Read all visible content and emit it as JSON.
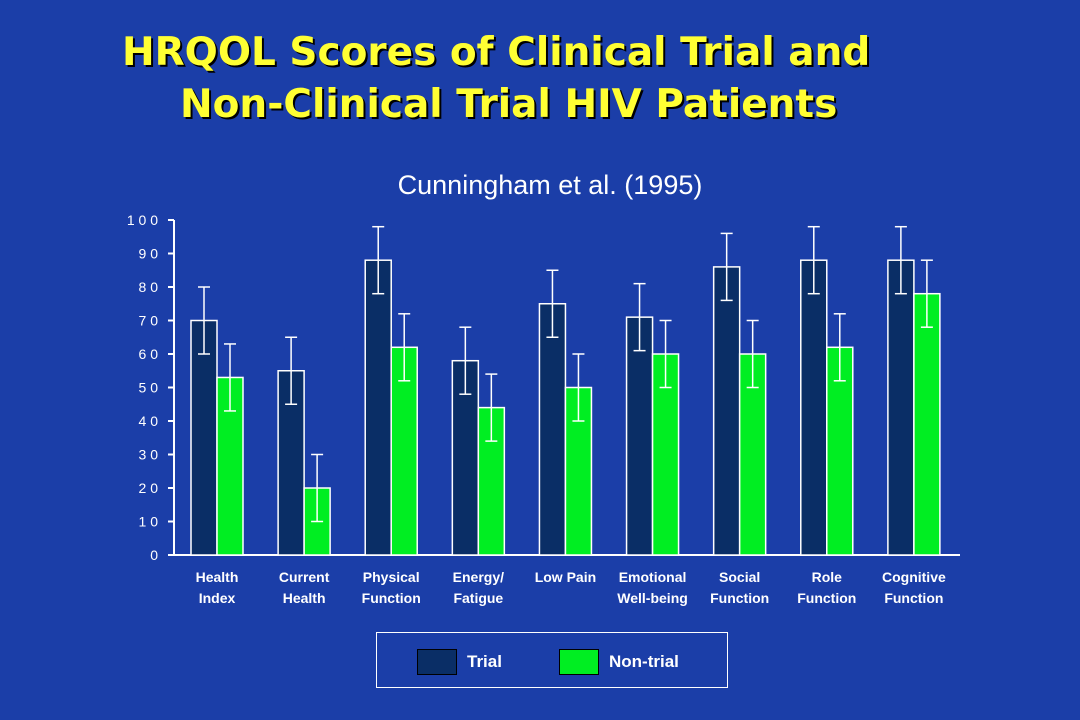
{
  "title": {
    "line1": "HRQOL Scores of Clinical Trial and",
    "line2": "Non-Clinical Trial HIV Patients"
  },
  "subtitle": "Cunningham  et al. (1995)",
  "legend": {
    "trial_label": "Trial",
    "nontrial_label": "Non-trial"
  },
  "colors": {
    "background": "#1b3ea8",
    "title": "#ffff33",
    "trial": "#0a2e66",
    "nontrial": "#00ee22",
    "axis": "#ffffff"
  },
  "chart_data": {
    "type": "bar",
    "categories": [
      [
        "Health",
        "Index"
      ],
      [
        "Current",
        "Health"
      ],
      [
        "Physical",
        "Function"
      ],
      [
        "Energy/",
        "Fatigue"
      ],
      [
        "Low Pain"
      ],
      [
        "Emotional",
        "Well-being"
      ],
      [
        "Social",
        "Function"
      ],
      [
        "Role",
        "Function"
      ],
      [
        "Cognitive",
        "Function"
      ]
    ],
    "series": [
      {
        "name": "Trial",
        "values": [
          70,
          55,
          88,
          58,
          75,
          71,
          86,
          88,
          88
        ],
        "error_low": [
          60,
          45,
          78,
          48,
          65,
          61,
          76,
          78,
          78
        ],
        "error_high": [
          80,
          65,
          98,
          68,
          85,
          81,
          96,
          98,
          98
        ]
      },
      {
        "name": "Non-trial",
        "values": [
          53,
          20,
          62,
          44,
          50,
          60,
          60,
          62,
          78
        ],
        "error_low": [
          43,
          10,
          52,
          34,
          40,
          50,
          50,
          52,
          68
        ],
        "error_high": [
          63,
          30,
          72,
          54,
          60,
          70,
          70,
          72,
          88
        ]
      }
    ],
    "ylim": [
      0,
      100
    ],
    "yticks": [
      "0",
      "1 0",
      "2 0",
      "3 0",
      "4 0",
      "5 0",
      "6 0",
      "7 0",
      "8 0",
      "9 0",
      "1 0 0"
    ],
    "xlabel": "",
    "ylabel": "",
    "legend_position": "bottom-center",
    "grid": false
  }
}
